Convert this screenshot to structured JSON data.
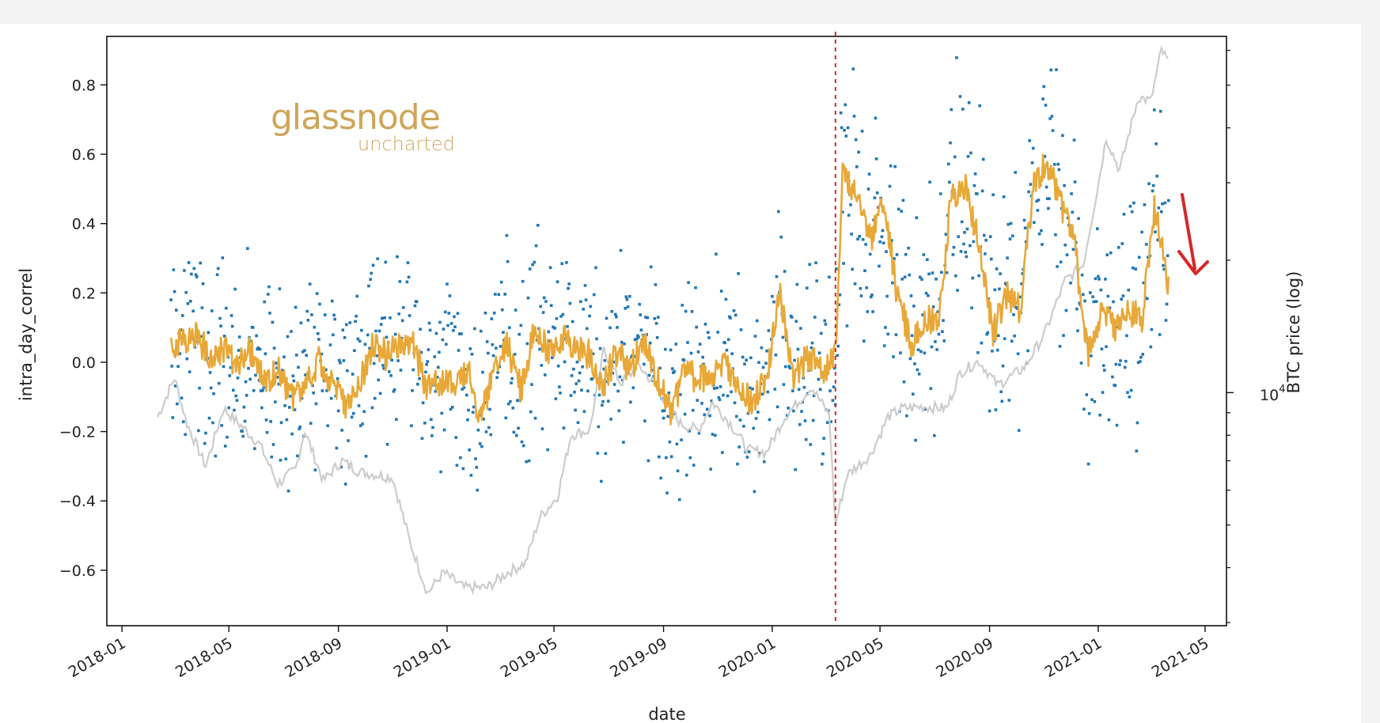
{
  "chart_data": {
    "type": "line",
    "xlabel": "date",
    "ylabel": "intra_day_correl",
    "y2label": "BTC price (log)",
    "ylim": [
      -0.76,
      0.94
    ],
    "y2lim_log10": [
      3.47,
      4.81
    ],
    "xlim": [
      "2017-12-15",
      "2021-05-25"
    ],
    "y_ticks": [
      "0.8",
      "0.6",
      "0.4",
      "0.2",
      "0.0",
      "−0.2",
      "−0.4",
      "−0.6"
    ],
    "x_ticks": [
      "2018-01",
      "2018-05",
      "2018-09",
      "2019-01",
      "2019-05",
      "2019-09",
      "2020-01",
      "2020-05",
      "2020-09",
      "2021-01",
      "2021-05"
    ],
    "y2_tick_label": "10",
    "y2_tick_exp": "4",
    "vline_date": "2020-03-12",
    "grid": false,
    "series": [
      {
        "style": "rolling-mean-line",
        "color": "#e8a838",
        "points": [
          [
            "2018-02-25",
            0.05
          ],
          [
            "2018-03-10",
            0.06
          ],
          [
            "2018-03-25",
            0.08
          ],
          [
            "2018-04-10",
            0.02
          ],
          [
            "2018-04-25",
            0.04
          ],
          [
            "2018-05-10",
            -0.02
          ],
          [
            "2018-05-25",
            0.03
          ],
          [
            "2018-06-10",
            -0.06
          ],
          [
            "2018-06-25",
            -0.02
          ],
          [
            "2018-07-10",
            -0.1
          ],
          [
            "2018-07-25",
            -0.08
          ],
          [
            "2018-08-10",
            0.0
          ],
          [
            "2018-08-25",
            -0.05
          ],
          [
            "2018-09-10",
            -0.12
          ],
          [
            "2018-09-25",
            -0.06
          ],
          [
            "2018-10-10",
            0.05
          ],
          [
            "2018-10-25",
            0.02
          ],
          [
            "2018-11-10",
            0.06
          ],
          [
            "2018-11-25",
            0.05
          ],
          [
            "2018-12-10",
            -0.08
          ],
          [
            "2018-12-25",
            -0.05
          ],
          [
            "2019-01-10",
            -0.06
          ],
          [
            "2019-01-25",
            -0.02
          ],
          [
            "2019-02-05",
            -0.18
          ],
          [
            "2019-02-20",
            -0.05
          ],
          [
            "2019-03-10",
            0.05
          ],
          [
            "2019-03-25",
            -0.08
          ],
          [
            "2019-04-10",
            0.12
          ],
          [
            "2019-04-25",
            0.02
          ],
          [
            "2019-05-10",
            0.07
          ],
          [
            "2019-05-25",
            0.04
          ],
          [
            "2019-06-10",
            0.02
          ],
          [
            "2019-06-25",
            -0.07
          ],
          [
            "2019-07-10",
            0.03
          ],
          [
            "2019-07-25",
            -0.02
          ],
          [
            "2019-08-10",
            0.05
          ],
          [
            "2019-08-25",
            -0.05
          ],
          [
            "2019-09-10",
            -0.15
          ],
          [
            "2019-09-25",
            -0.02
          ],
          [
            "2019-10-10",
            -0.05
          ],
          [
            "2019-10-25",
            -0.03
          ],
          [
            "2019-11-10",
            0.0
          ],
          [
            "2019-11-25",
            -0.08
          ],
          [
            "2019-12-10",
            -0.12
          ],
          [
            "2019-12-25",
            -0.05
          ],
          [
            "2020-01-10",
            0.2
          ],
          [
            "2020-01-25",
            -0.05
          ],
          [
            "2020-02-10",
            0.02
          ],
          [
            "2020-02-25",
            -0.03
          ],
          [
            "2020-03-12",
            0.02
          ],
          [
            "2020-03-20",
            0.55
          ],
          [
            "2020-04-05",
            0.47
          ],
          [
            "2020-04-20",
            0.35
          ],
          [
            "2020-05-05",
            0.45
          ],
          [
            "2020-05-20",
            0.2
          ],
          [
            "2020-06-05",
            0.05
          ],
          [
            "2020-06-20",
            0.13
          ],
          [
            "2020-07-05",
            0.1
          ],
          [
            "2020-07-20",
            0.47
          ],
          [
            "2020-08-05",
            0.5
          ],
          [
            "2020-08-20",
            0.35
          ],
          [
            "2020-09-05",
            0.08
          ],
          [
            "2020-09-20",
            0.2
          ],
          [
            "2020-10-05",
            0.15
          ],
          [
            "2020-10-20",
            0.5
          ],
          [
            "2020-11-05",
            0.58
          ],
          [
            "2020-11-20",
            0.45
          ],
          [
            "2020-12-05",
            0.35
          ],
          [
            "2020-12-20",
            0.02
          ],
          [
            "2021-01-05",
            0.15
          ],
          [
            "2021-01-20",
            0.1
          ],
          [
            "2021-02-05",
            0.15
          ],
          [
            "2021-02-20",
            0.13
          ],
          [
            "2021-03-05",
            0.45
          ],
          [
            "2021-03-15",
            0.3
          ],
          [
            "2021-03-22",
            0.2
          ]
        ]
      },
      {
        "style": "price-line",
        "color": "#cccccc",
        "axis": "right",
        "points": [
          [
            "2018-02-10",
            8800
          ],
          [
            "2018-03-01",
            10800
          ],
          [
            "2018-03-15",
            8500
          ],
          [
            "2018-04-05",
            6800
          ],
          [
            "2018-04-25",
            9200
          ],
          [
            "2018-05-15",
            8400
          ],
          [
            "2018-06-05",
            7600
          ],
          [
            "2018-06-25",
            6200
          ],
          [
            "2018-07-15",
            6700
          ],
          [
            "2018-07-25",
            8200
          ],
          [
            "2018-08-15",
            6300
          ],
          [
            "2018-09-05",
            7000
          ],
          [
            "2018-09-25",
            6600
          ],
          [
            "2018-10-15",
            6500
          ],
          [
            "2018-11-01",
            6400
          ],
          [
            "2018-11-20",
            4600
          ],
          [
            "2018-12-10",
            3500
          ],
          [
            "2018-12-28",
            3900
          ],
          [
            "2019-01-20",
            3600
          ],
          [
            "2019-02-15",
            3600
          ],
          [
            "2019-03-10",
            3900
          ],
          [
            "2019-03-30",
            4100
          ],
          [
            "2019-04-15",
            5200
          ],
          [
            "2019-05-05",
            5800
          ],
          [
            "2019-05-20",
            8000
          ],
          [
            "2019-06-10",
            8200
          ],
          [
            "2019-06-26",
            12500
          ],
          [
            "2019-07-15",
            10500
          ],
          [
            "2019-08-05",
            11500
          ],
          [
            "2019-08-25",
            10200
          ],
          [
            "2019-09-20",
            8500
          ],
          [
            "2019-10-10",
            8200
          ],
          [
            "2019-10-26",
            9500
          ],
          [
            "2019-11-15",
            8500
          ],
          [
            "2019-12-05",
            7400
          ],
          [
            "2019-12-25",
            7300
          ],
          [
            "2020-01-15",
            8800
          ],
          [
            "2020-02-14",
            10300
          ],
          [
            "2020-03-05",
            8900
          ],
          [
            "2020-03-12",
            5000
          ],
          [
            "2020-03-25",
            6500
          ],
          [
            "2020-04-20",
            7200
          ],
          [
            "2020-05-10",
            8800
          ],
          [
            "2020-05-25",
            9200
          ],
          [
            "2020-06-20",
            9300
          ],
          [
            "2020-07-15",
            9200
          ],
          [
            "2020-07-30",
            11100
          ],
          [
            "2020-08-20",
            11800
          ],
          [
            "2020-09-10",
            10400
          ],
          [
            "2020-10-10",
            11400
          ],
          [
            "2020-11-01",
            13500
          ],
          [
            "2020-11-25",
            18000
          ],
          [
            "2020-12-15",
            19500
          ],
          [
            "2020-12-31",
            29000
          ],
          [
            "2021-01-10",
            38000
          ],
          [
            "2021-01-25",
            32000
          ],
          [
            "2021-02-15",
            47000
          ],
          [
            "2021-03-01",
            46000
          ],
          [
            "2021-03-13",
            60000
          ],
          [
            "2021-03-22",
            56000
          ]
        ]
      }
    ]
  }
}
